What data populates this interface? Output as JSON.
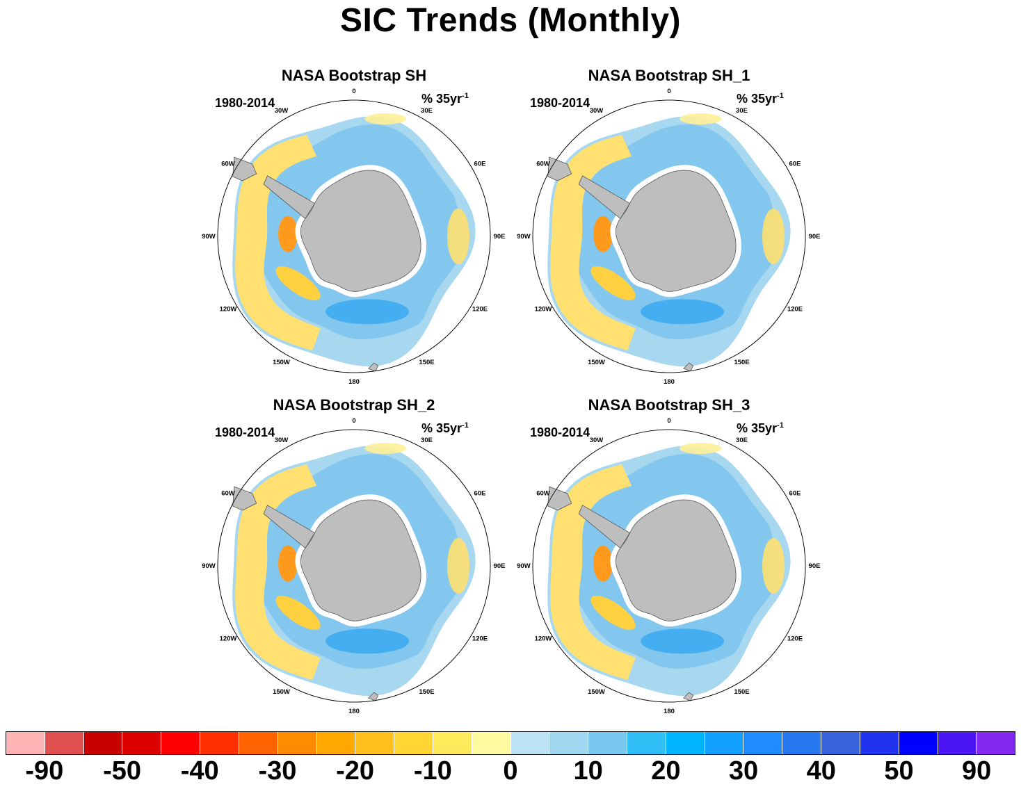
{
  "title": "SIC Trends (Monthly)",
  "panels": [
    {
      "title": "NASA Bootstrap SH",
      "period": "1980-2014",
      "units": "% 35yr",
      "units_exp": "-1"
    },
    {
      "title": "NASA Bootstrap SH_1",
      "period": "1980-2014",
      "units": "% 35yr",
      "units_exp": "-1"
    },
    {
      "title": "NASA Bootstrap SH_2",
      "period": "1980-2014",
      "units": "% 35yr",
      "units_exp": "-1"
    },
    {
      "title": "NASA Bootstrap SH_3",
      "period": "1980-2014",
      "units": "% 35yr",
      "units_exp": "-1"
    }
  ],
  "longitude_labels": [
    "0",
    "30E",
    "60E",
    "90E",
    "120E",
    "150E",
    "180",
    "150W",
    "120W",
    "90W",
    "60W",
    "30W"
  ],
  "colorbar": {
    "colors": [
      "#fcb4b4",
      "#e05050",
      "#c80000",
      "#dc0000",
      "#ff0000",
      "#ff3000",
      "#ff6400",
      "#ff8c00",
      "#ffa800",
      "#ffc01c",
      "#ffd634",
      "#ffea5c",
      "#fffaa0",
      "#bde4f5",
      "#a0d6f0",
      "#78c8f0",
      "#32bff5",
      "#00b4ff",
      "#14a0ff",
      "#1e8cff",
      "#2878f0",
      "#3764dc",
      "#1e32f0",
      "#0000ff",
      "#4b14f5",
      "#8228f0"
    ],
    "tick_labels": [
      "-90",
      "-50",
      "-40",
      "-30",
      "-20",
      "-10",
      "0",
      "10",
      "20",
      "30",
      "40",
      "50",
      "90"
    ]
  },
  "colors": {
    "land": "#bebebe",
    "coast": "#555555",
    "negative_trend": "#ffe070",
    "positive_trend": "#a8d8f0"
  }
}
